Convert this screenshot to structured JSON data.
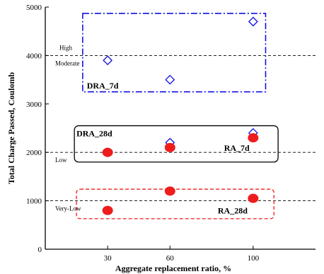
{
  "chart_data": {
    "type": "scatter",
    "xlabel": "Aggregate replacement ratio, %",
    "ylabel": "Total Charge Passed, Coulomb",
    "xlim": [
      0,
      130
    ],
    "ylim": [
      0,
      5000
    ],
    "x_ticks": [
      30,
      60,
      100
    ],
    "y_ticks": [
      0,
      1000,
      2000,
      3000,
      4000,
      5000
    ],
    "series": [
      {
        "name": "DRA_7d",
        "marker": "open-diamond",
        "color": "#1010e0",
        "points": [
          {
            "x": 30,
            "y": 3900
          },
          {
            "x": 60,
            "y": 3500
          },
          {
            "x": 100,
            "y": 4700
          }
        ]
      },
      {
        "name": "DRA_28d",
        "marker": "open-diamond",
        "color": "#1010e0",
        "points": [
          {
            "x": 30,
            "y": 2000
          },
          {
            "x": 60,
            "y": 2200
          },
          {
            "x": 100,
            "y": 2400
          }
        ]
      },
      {
        "name": "RA_7d",
        "marker": "filled-circle",
        "color": "#ee1c1c",
        "points": [
          {
            "x": 30,
            "y": 2000
          },
          {
            "x": 60,
            "y": 2100
          },
          {
            "x": 100,
            "y": 2300
          }
        ]
      },
      {
        "name": "RA_28d",
        "marker": "filled-circle",
        "color": "#ee1c1c",
        "points": [
          {
            "x": 30,
            "y": 800
          },
          {
            "x": 60,
            "y": 1200
          },
          {
            "x": 100,
            "y": 1050
          }
        ]
      }
    ],
    "threshold_lines": [
      {
        "y": 4000,
        "label_above": "High",
        "label_below": "Moderate"
      },
      {
        "y": 2000,
        "label_below": "Low"
      },
      {
        "y": 1000,
        "label_below": "Very-Low"
      }
    ],
    "group_labels": [
      "DRA_7d",
      "DRA_28d",
      "RA_7d",
      "RA_28d"
    ],
    "grid": false
  }
}
